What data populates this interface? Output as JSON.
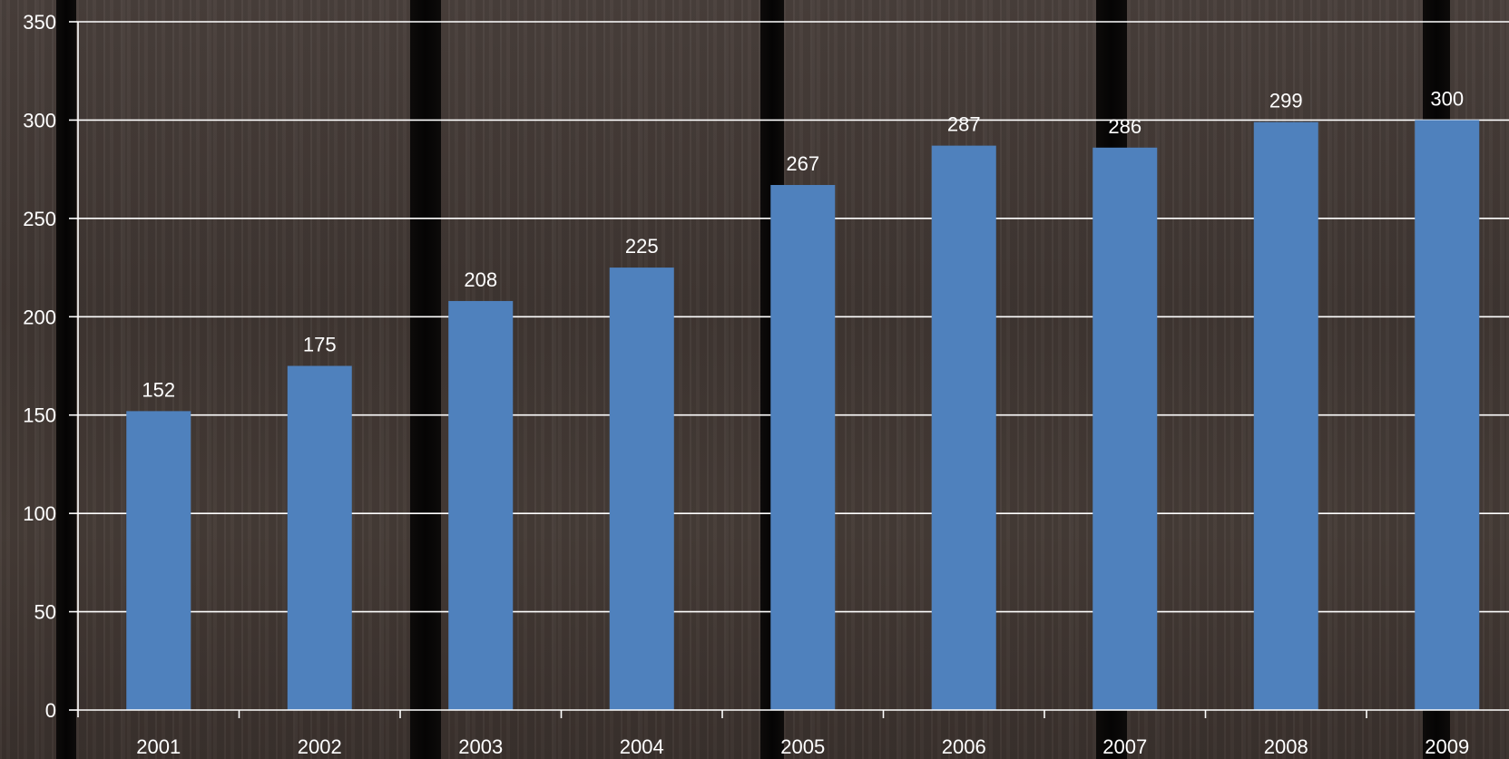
{
  "chart_data": {
    "type": "bar",
    "categories": [
      "2001",
      "2002",
      "2003",
      "2004",
      "2005",
      "2006",
      "2007",
      "2008",
      "2009"
    ],
    "values": [
      152,
      175,
      208,
      225,
      267,
      287,
      286,
      299,
      300
    ],
    "data_labels": [
      "152",
      "175",
      "208",
      "225",
      "267",
      "287",
      "286",
      "299",
      "300"
    ],
    "y_ticks": [
      "0",
      "50",
      "100",
      "150",
      "200",
      "250",
      "300",
      "350"
    ],
    "ylim": [
      0,
      350
    ],
    "grid": true,
    "legend": "none",
    "bar_color": "#4f81bd",
    "text_color": "#ffffff",
    "grid_color": "#ffffff"
  }
}
